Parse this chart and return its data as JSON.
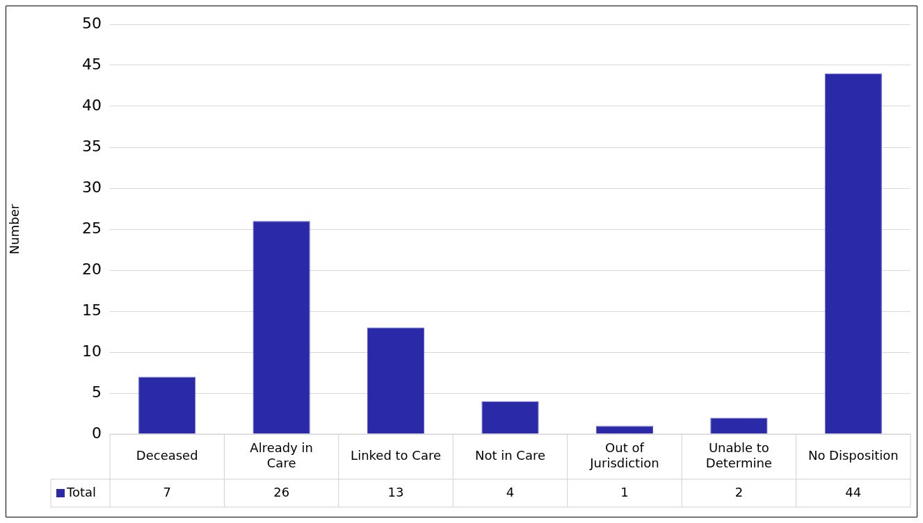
{
  "chart_data": {
    "type": "bar",
    "ylabel": "Number",
    "categories": [
      "Deceased",
      "Already in Care",
      "Linked to Care",
      "Not in Care",
      "Out of Jurisdiction",
      "Unable to Determine",
      "No Disposition"
    ],
    "series": [
      {
        "name": "Total",
        "color": "#2a2aa8",
        "values": [
          7,
          26,
          13,
          4,
          1,
          2,
          44
        ]
      }
    ],
    "ylim": [
      0,
      50
    ],
    "yticks": [
      0,
      5,
      10,
      15,
      20,
      25,
      30,
      35,
      40,
      45,
      50
    ],
    "grid": "y",
    "legend": "bottom",
    "data_labels": true
  }
}
